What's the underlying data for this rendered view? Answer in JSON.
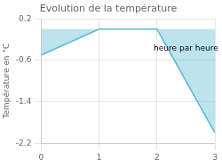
{
  "chart_data": {
    "type": "area",
    "title": "Evolution de la température",
    "y_label": "Température en °C",
    "x": [
      0,
      1,
      2,
      3
    ],
    "values": [
      -0.5,
      0.0,
      0.0,
      -2.0
    ],
    "color": "#5bb8d4",
    "xlim": [
      0,
      3
    ],
    "ylim": [
      -2.2,
      0.2
    ],
    "xticks": [
      0,
      1,
      2,
      3
    ],
    "yticks": [
      0.2,
      -0.6,
      -1.4,
      -2.2
    ],
    "grid": true,
    "annotations": [
      {
        "text": "heure par heure",
        "x": 2.5,
        "y": -0.38
      }
    ]
  }
}
